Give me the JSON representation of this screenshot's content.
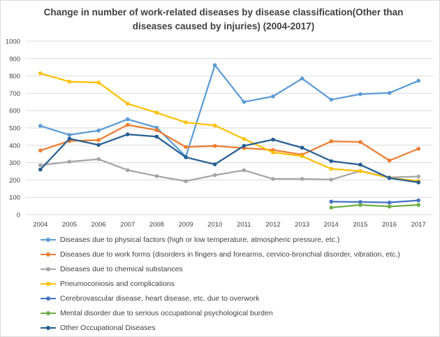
{
  "chart_data": {
    "type": "line",
    "title": "Change in number of work-related diseases by disease classification(Other than diseases caused by injuries) (2004-2017)",
    "xlabel": "",
    "ylabel": "",
    "ylim": [
      0,
      1000
    ],
    "yticks": [
      0,
      100,
      200,
      300,
      400,
      500,
      600,
      700,
      800,
      900,
      1000
    ],
    "categories": [
      "2004",
      "2005",
      "2006",
      "2007",
      "2008",
      "2009",
      "2010",
      "2011",
      "2012",
      "2013",
      "2014",
      "2015",
      "2016",
      "2017"
    ],
    "grid": true,
    "legend_position": "bottom",
    "series": [
      {
        "name": "Diseases due to physical factors (high or low temperature, atmospheric pressure, etc.)",
        "color": "#5b9bd5",
        "values": [
          512,
          460,
          485,
          550,
          502,
          335,
          862,
          650,
          682,
          785,
          663,
          695,
          702,
          772
        ]
      },
      {
        "name": "Diseases due to work forms (disorders in fingers and forearms, cervico-bronchial disorder, vibration, etc.)",
        "color": "#ed7d31",
        "values": [
          370,
          425,
          430,
          518,
          487,
          390,
          396,
          384,
          373,
          346,
          423,
          419,
          312,
          380
        ]
      },
      {
        "name": "Diseases due to chemical substances",
        "color": "#a5a5a5",
        "values": [
          285,
          305,
          320,
          257,
          222,
          193,
          228,
          256,
          206,
          206,
          202,
          252,
          215,
          220
        ]
      },
      {
        "name": "Pneumoconiosis and complications",
        "color": "#ffc000",
        "values": [
          815,
          767,
          762,
          640,
          588,
          532,
          514,
          437,
          359,
          337,
          264,
          251,
          212,
          194
        ]
      },
      {
        "name": "Cerebrovascular disease, heart disease, etc. due to overwork",
        "color": "#4472c4",
        "values": [
          null,
          null,
          null,
          null,
          null,
          null,
          null,
          null,
          null,
          null,
          75,
          73,
          70,
          82
        ]
      },
      {
        "name": "Mental disorder due to serious occupational psychological burden",
        "color": "#70ad47",
        "values": [
          null,
          null,
          null,
          null,
          null,
          null,
          null,
          null,
          null,
          null,
          41,
          56,
          47,
          56
        ]
      },
      {
        "name": "Other Occupational Diseases",
        "color": "#255e91",
        "values": [
          260,
          438,
          402,
          463,
          450,
          331,
          290,
          397,
          433,
          386,
          309,
          288,
          211,
          186
        ]
      }
    ]
  }
}
